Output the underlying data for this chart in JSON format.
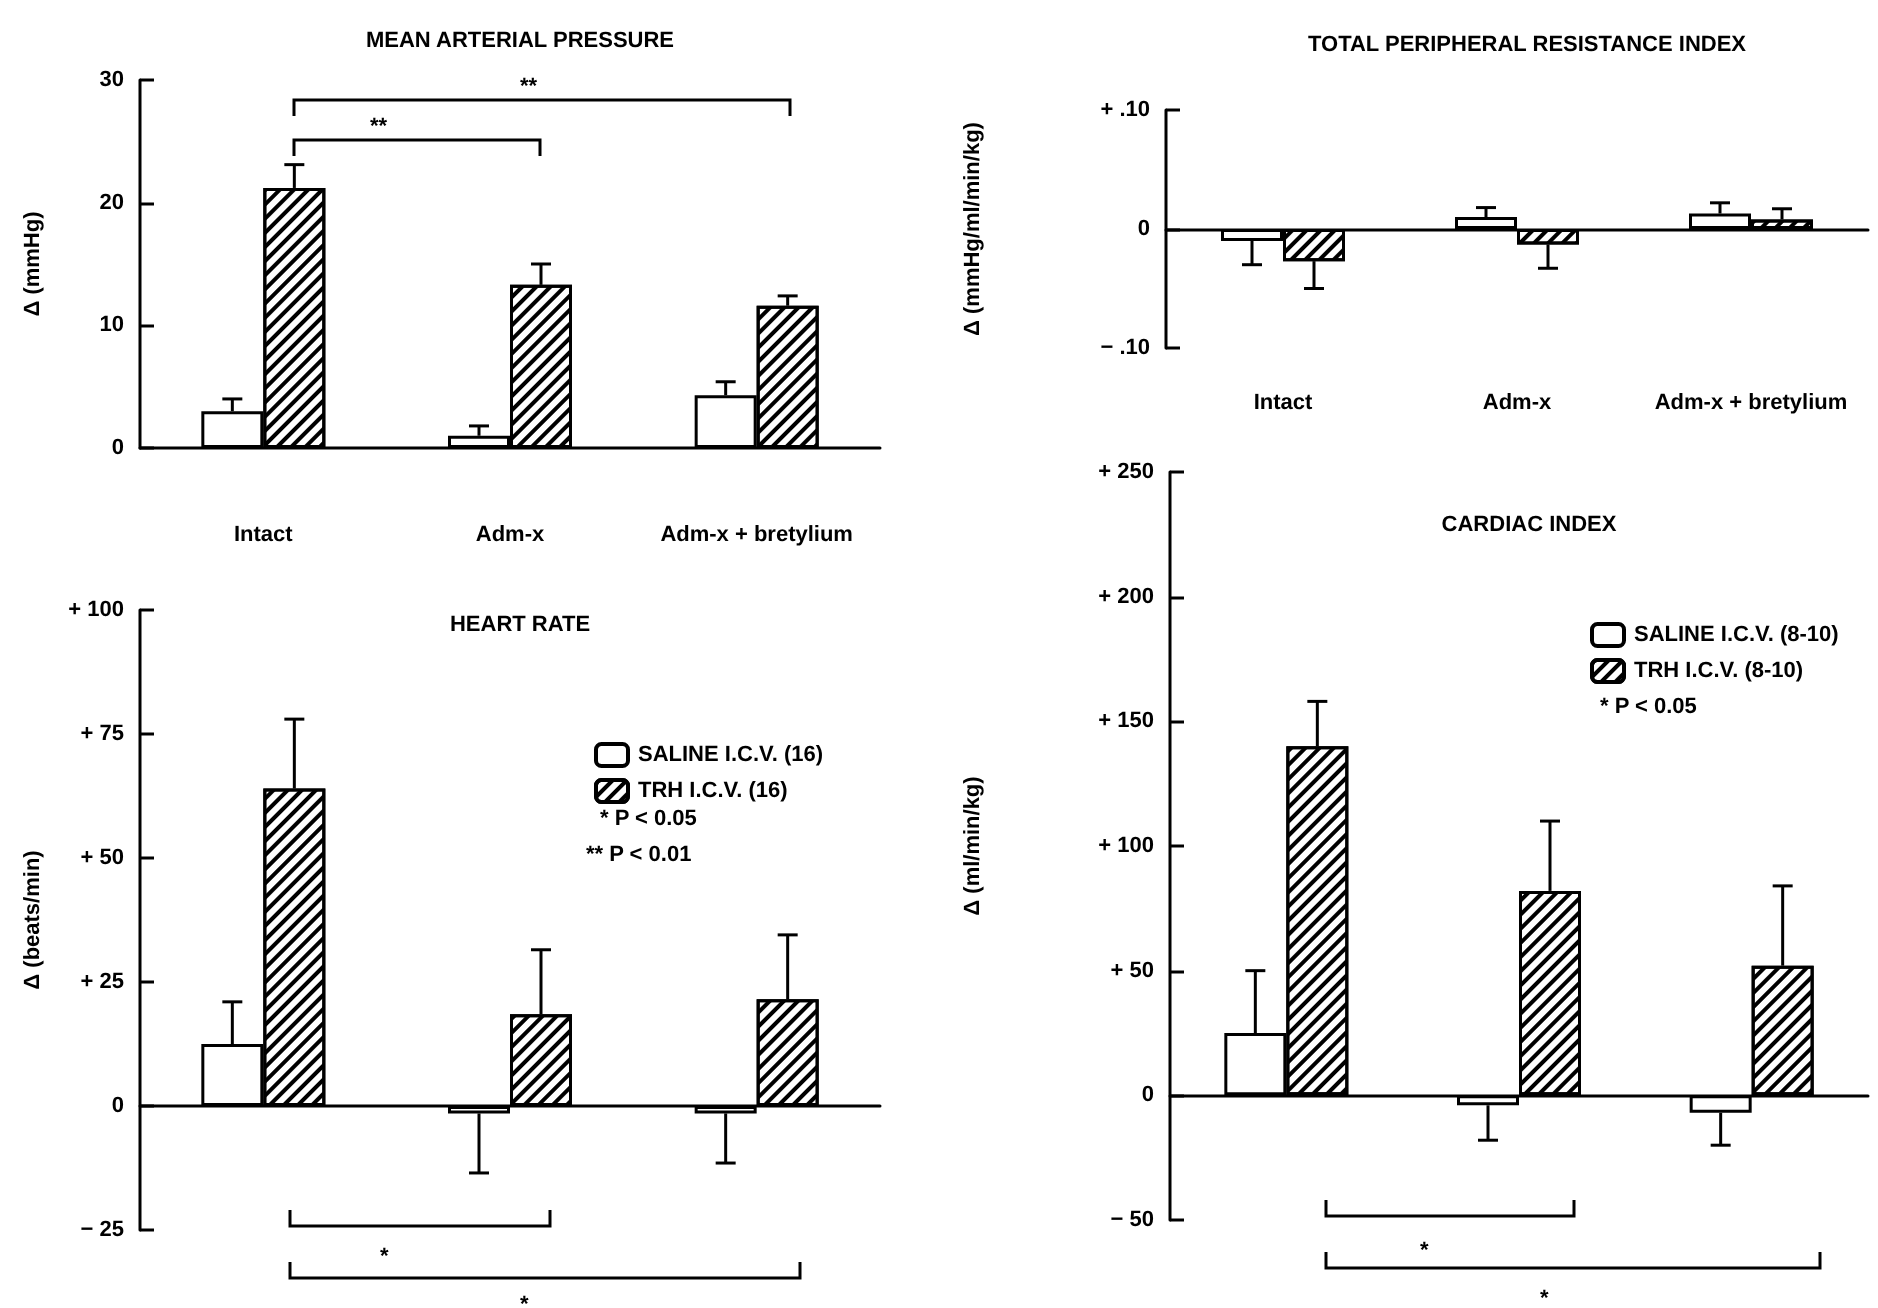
{
  "chart_data": [
    {
      "type": "bar",
      "title": "MEAN ARTERIAL PRESSURE",
      "ylabel": "Δ (mmHg)",
      "categories": [
        "Intact",
        "Adm-x",
        "Adm-x + bretylium"
      ],
      "series": [
        {
          "color": "#ffffff",
          "values": [
            3,
            1,
            4.3
          ],
          "errors": [
            [
              3,
              4
            ],
            [
              1,
              1.8
            ],
            [
              4.3,
              5.4
            ]
          ]
        },
        {
          "color": "#000000",
          "values": [
            21.2,
            13.3,
            11.6
          ],
          "errors": [
            [
              21.2,
              23.1
            ],
            [
              13.3,
              15
            ],
            [
              11.6,
              12.4
            ]
          ]
        }
      ],
      "ylim": [
        0,
        30
      ],
      "yticks": [
        0,
        10,
        20,
        30
      ],
      "annotations": [
        "**",
        "**"
      ]
    },
    {
      "type": "bar",
      "title": "TOTAL PERIPHERAL RESISTANCE INDEX",
      "ylabel": "Δ (mmHg/ml/min/kg)",
      "categories": [
        "Intact",
        "Adm-x",
        "Adm-x + bretylium"
      ],
      "series": [
        {
          "color": "#ffffff",
          "values": [
            -0.01,
            0.01,
            0.013
          ],
          "errors": [
            [
              -0.03,
              -0.01
            ],
            [
              0.01,
              0.018
            ],
            [
              0.013,
              0.022
            ]
          ]
        },
        {
          "color": "#000000",
          "values": [
            -0.027,
            -0.013,
            0.008
          ],
          "errors": [
            [
              -0.05,
              -0.027
            ],
            [
              -0.033,
              -0.013
            ],
            [
              0.008,
              0.017
            ]
          ]
        }
      ],
      "ylim": [
        -0.1,
        0.1
      ],
      "yticks": [
        {
          "value": -0.1,
          "label": "− .10"
        },
        0,
        {
          "value": 0.1,
          "label": "+ .10"
        }
      ]
    },
    {
      "type": "bar",
      "title": "HEART RATE",
      "ylabel": "Δ (beats/min)",
      "categories": [
        null,
        null,
        null
      ],
      "series": [
        {
          "name": "SALINE I.C.V. (16)",
          "color": "#ffffff",
          "values": [
            12.5,
            -1.5,
            -1.5
          ],
          "errors": [
            [
              12.5,
              21
            ],
            [
              -13.5,
              -1.5
            ],
            [
              -11.5,
              -1.5
            ]
          ]
        },
        {
          "name": "TRH I.C.V. (16)",
          "color": "#000000",
          "values": [
            64,
            18.5,
            21.5
          ],
          "errors": [
            [
              64,
              78
            ],
            [
              18.5,
              31.5
            ],
            [
              21.5,
              34.5
            ]
          ]
        }
      ],
      "ylim": [
        -25,
        100
      ],
      "yticks": [
        {
          "value": -25,
          "label": "− 25"
        },
        0,
        {
          "value": 25,
          "label": "+ 25"
        },
        {
          "value": 50,
          "label": "+ 50"
        },
        {
          "value": 75,
          "label": "+ 75"
        },
        {
          "value": 100,
          "label": "+ 100"
        }
      ],
      "tick_labels": "y",
      "legend": "top right",
      "annotations": [
        "* P < 0.05",
        "** P < 0.01",
        "*",
        "*"
      ]
    },
    {
      "type": "bar",
      "title": "CARDIAC INDEX",
      "ylabel": "Δ (ml/min/kg)",
      "categories": [
        null,
        null,
        null
      ],
      "series": [
        {
          "name": "SALINE I.C.V. (8-10)",
          "color": "#ffffff",
          "values": [
            25,
            -4,
            -7
          ],
          "errors": [
            [
              25,
              50
            ],
            [
              -18,
              -4
            ],
            [
              -20,
              -7
            ]
          ]
        },
        {
          "name": "TRH I.C.V. (8-10)",
          "color": "#000000",
          "values": [
            140,
            82,
            52
          ],
          "errors": [
            [
              140,
              158
            ],
            [
              82,
              110
            ],
            [
              52,
              84
            ]
          ]
        }
      ],
      "ylim": [
        -50,
        250
      ],
      "yticks": [
        {
          "value": -50,
          "label": "− 50"
        },
        0,
        {
          "value": 50,
          "label": "+ 50"
        },
        {
          "value": 100,
          "label": "+ 100"
        },
        {
          "value": 150,
          "label": "+ 150"
        },
        {
          "value": 200,
          "label": "+ 200"
        },
        {
          "value": 250,
          "label": "+ 250"
        }
      ],
      "tick_labels": "y",
      "legend": "top right",
      "annotations": [
        "* P < 0.05",
        "*",
        "*"
      ]
    }
  ]
}
